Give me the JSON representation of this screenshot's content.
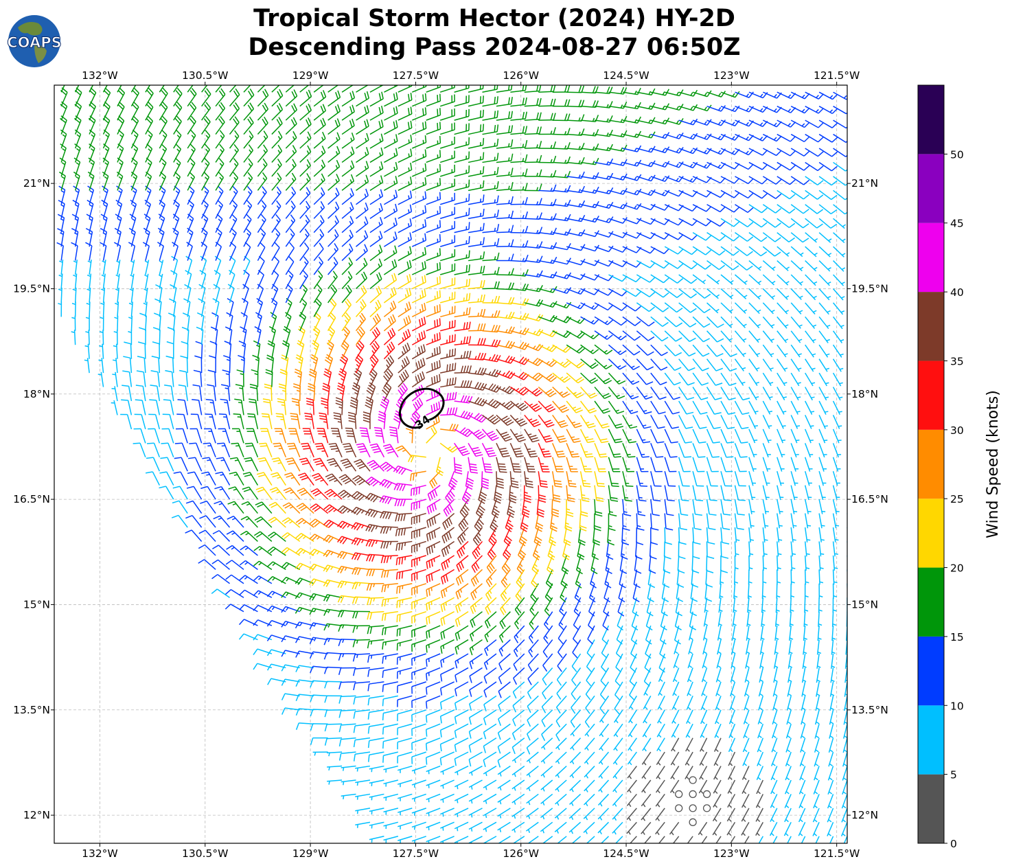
{
  "logo": {
    "text": "COAPS"
  },
  "title_lines": [
    "Tropical Storm Hector (2024) HY-2D",
    "Descending Pass 2024-08-27 06:50Z"
  ],
  "chart_data": {
    "type": "wind_barb_map",
    "title": "Tropical Storm Hector (2024) HY-2D Descending Pass 2024-08-27 06:50Z",
    "lon_range": [
      -132.65,
      -121.35
    ],
    "lat_range": [
      11.6,
      22.4
    ],
    "x_ticks": [
      -132,
      -130.5,
      -129,
      -127.5,
      -126,
      -124.5,
      -123,
      -121.5
    ],
    "x_tick_labels": [
      "132°W",
      "130.5°W",
      "129°W",
      "127.5°W",
      "126°W",
      "124.5°W",
      "123°W",
      "121.5°W"
    ],
    "y_ticks": [
      12,
      13.5,
      15,
      16.5,
      18,
      19.5,
      21
    ],
    "y_tick_labels": [
      "12°N",
      "13.5°N",
      "15°N",
      "16.5°N",
      "18°N",
      "19.5°N",
      "21°N"
    ],
    "grid": true,
    "storm_center": {
      "lon": -127.3,
      "lat": 17.2
    },
    "contour": {
      "label": "34",
      "level_knots": 34
    },
    "colorbar": {
      "label": "Wind Speed (knots)",
      "bounds": [
        0,
        5,
        10,
        15,
        20,
        25,
        30,
        35,
        40,
        45,
        50,
        55
      ],
      "tick_values": [
        0,
        5,
        10,
        15,
        20,
        25,
        30,
        35,
        40,
        45,
        50
      ],
      "tick_labels": [
        "0",
        "5",
        "10",
        "15",
        "20",
        "25",
        "30",
        "35",
        "40",
        "45",
        "50"
      ],
      "colors": [
        "#555555",
        "#00bfff",
        "#003cff",
        "#00960a",
        "#ffd700",
        "#ff8c00",
        "#ff0f0f",
        "#7d3a29",
        "#ee00ee",
        "#8a00bf",
        "#2a0055"
      ]
    }
  }
}
